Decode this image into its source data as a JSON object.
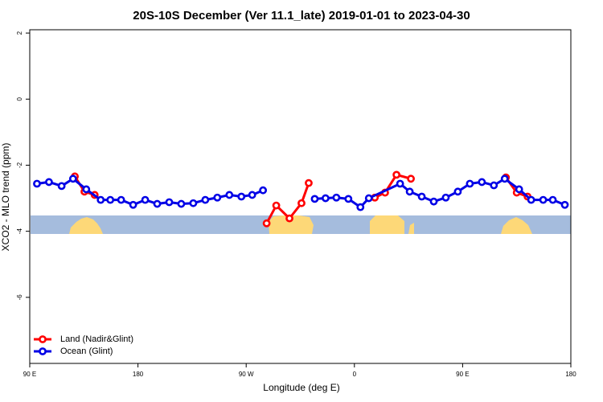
{
  "chart_data": {
    "type": "line",
    "title": "20S-10S December (Ver 11.1_late)   2019-01-01 to 2023-04-30",
    "x_label": "Longitude (deg E)",
    "y_label": "XCO2 - MLO trend (ppm)",
    "xlim": [
      90,
      540
    ],
    "xticks": [
      {
        "value": 90,
        "label": "90 E"
      },
      180,
      {
        "value": 270,
        "label": "90 W"
      },
      {
        "value": 360,
        "label": "0"
      },
      {
        "value": 450,
        "label": "90 E"
      },
      {
        "value": 540,
        "label": "180"
      }
    ],
    "ylim": [
      -8,
      2.1
    ],
    "yticks": [
      2,
      0,
      -2,
      -4,
      -6
    ],
    "grid": false,
    "legend": "bottom-left",
    "series": [
      {
        "name": "Land (Nadir&Glint)",
        "color": "#ff0000",
        "x": [
          127.5,
          135.5,
          144,
          null,
          287,
          295,
          306,
          316,
          322,
          null,
          377,
          385.5,
          395,
          407,
          null,
          486,
          495,
          504
        ],
        "values": [
          -2.34,
          -2.8,
          -2.9,
          null,
          -3.76,
          -3.22,
          -3.61,
          -3.15,
          -2.54,
          null,
          -2.98,
          -2.83,
          -2.29,
          -2.41,
          null,
          -2.37,
          -2.83,
          -2.95
        ]
      },
      {
        "name": "Ocean (Glint)",
        "color": "#0000e6",
        "x": [
          96,
          106,
          116.5,
          126,
          137,
          149,
          157,
          166,
          176,
          186,
          196,
          206,
          216,
          226,
          236,
          246,
          256,
          266,
          275,
          284,
          null,
          327,
          336,
          345,
          355,
          365,
          372,
          398,
          406,
          416,
          426,
          436,
          446,
          456,
          466,
          476,
          485,
          497,
          507,
          517,
          525,
          535
        ],
        "values": [
          -2.56,
          -2.51,
          -2.63,
          -2.41,
          -2.73,
          -3.05,
          -3.05,
          -3.05,
          -3.2,
          -3.05,
          -3.17,
          -3.12,
          -3.17,
          -3.15,
          -3.05,
          -2.98,
          -2.9,
          -2.95,
          -2.9,
          -2.76,
          null,
          -3.02,
          -3.0,
          -2.98,
          -3.02,
          -3.27,
          -3.0,
          -2.56,
          -2.8,
          -2.95,
          -3.1,
          -2.98,
          -2.8,
          -2.56,
          -2.51,
          -2.61,
          -2.41,
          -2.73,
          -3.05,
          -3.05,
          -3.05,
          -3.2
        ]
      }
    ]
  }
}
